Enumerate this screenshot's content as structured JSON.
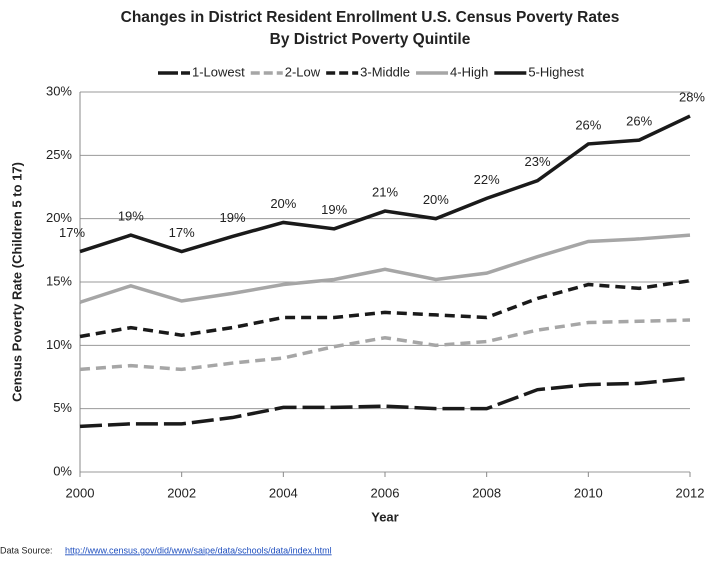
{
  "chart_data": {
    "type": "line",
    "title": [
      "Changes in District Resident Enrollment U.S. Census Poverty Rates",
      "By District Poverty Quintile"
    ],
    "x_label": "Year",
    "y_label": "Census Poverty Rate (Children 5 to 17)",
    "x": [
      2000,
      2001,
      2002,
      2003,
      2004,
      2005,
      2006,
      2007,
      2008,
      2009,
      2010,
      2011,
      2012
    ],
    "series": [
      {
        "name": "1-Lowest",
        "color": "#1a1a1a",
        "line_style": "long-dash",
        "values": [
          3.6,
          3.8,
          3.8,
          4.3,
          5.1,
          5.1,
          5.2,
          5.0,
          5.0,
          6.5,
          6.9,
          7.0,
          7.4
        ]
      },
      {
        "name": "2-Low",
        "color": "#a6a6a6",
        "line_style": "dash",
        "values": [
          8.1,
          8.4,
          8.1,
          8.6,
          9.0,
          9.9,
          10.6,
          10.0,
          10.3,
          11.2,
          11.8,
          11.9,
          12.0
        ]
      },
      {
        "name": "3-Middle",
        "color": "#1a1a1a",
        "line_style": "dash",
        "values": [
          10.7,
          11.4,
          10.8,
          11.4,
          12.2,
          12.2,
          12.6,
          12.4,
          12.2,
          13.7,
          14.8,
          14.5,
          15.1
        ]
      },
      {
        "name": "4-High",
        "color": "#a6a6a6",
        "line_style": "solid",
        "values": [
          13.4,
          14.7,
          13.5,
          14.1,
          14.8,
          15.2,
          16.0,
          15.2,
          15.7,
          17.0,
          18.2,
          18.4,
          18.7
        ]
      },
      {
        "name": "5-Highest",
        "color": "#1a1a1a",
        "line_style": "solid",
        "values": [
          17.4,
          18.7,
          17.4,
          18.6,
          19.7,
          19.2,
          20.6,
          20.0,
          21.6,
          23.0,
          25.9,
          26.2,
          28.1
        ],
        "value_labels": [
          "17%",
          "19%",
          "17%",
          "19%",
          "20%",
          "19%",
          "21%",
          "20%",
          "22%",
          "23%",
          "26%",
          "26%",
          "28%"
        ]
      }
    ],
    "xlim": [
      2000,
      2012
    ],
    "xticks": [
      2000,
      2002,
      2004,
      2006,
      2008,
      2010,
      2012
    ],
    "ylim": [
      0,
      30
    ],
    "yticks": [
      {
        "value": 0,
        "label": "0%"
      },
      {
        "value": 5,
        "label": "5%"
      },
      {
        "value": 10,
        "label": "10%"
      },
      {
        "value": 15,
        "label": "15%"
      },
      {
        "value": 20,
        "label": "20%"
      },
      {
        "value": 25,
        "label": "25%"
      },
      {
        "value": 30,
        "label": "30%"
      }
    ],
    "grid": true,
    "legend": "top",
    "source_label": "Data Source:",
    "source_url": "http://www.census.gov/did/www/saipe/data/schools/data/index.html"
  }
}
